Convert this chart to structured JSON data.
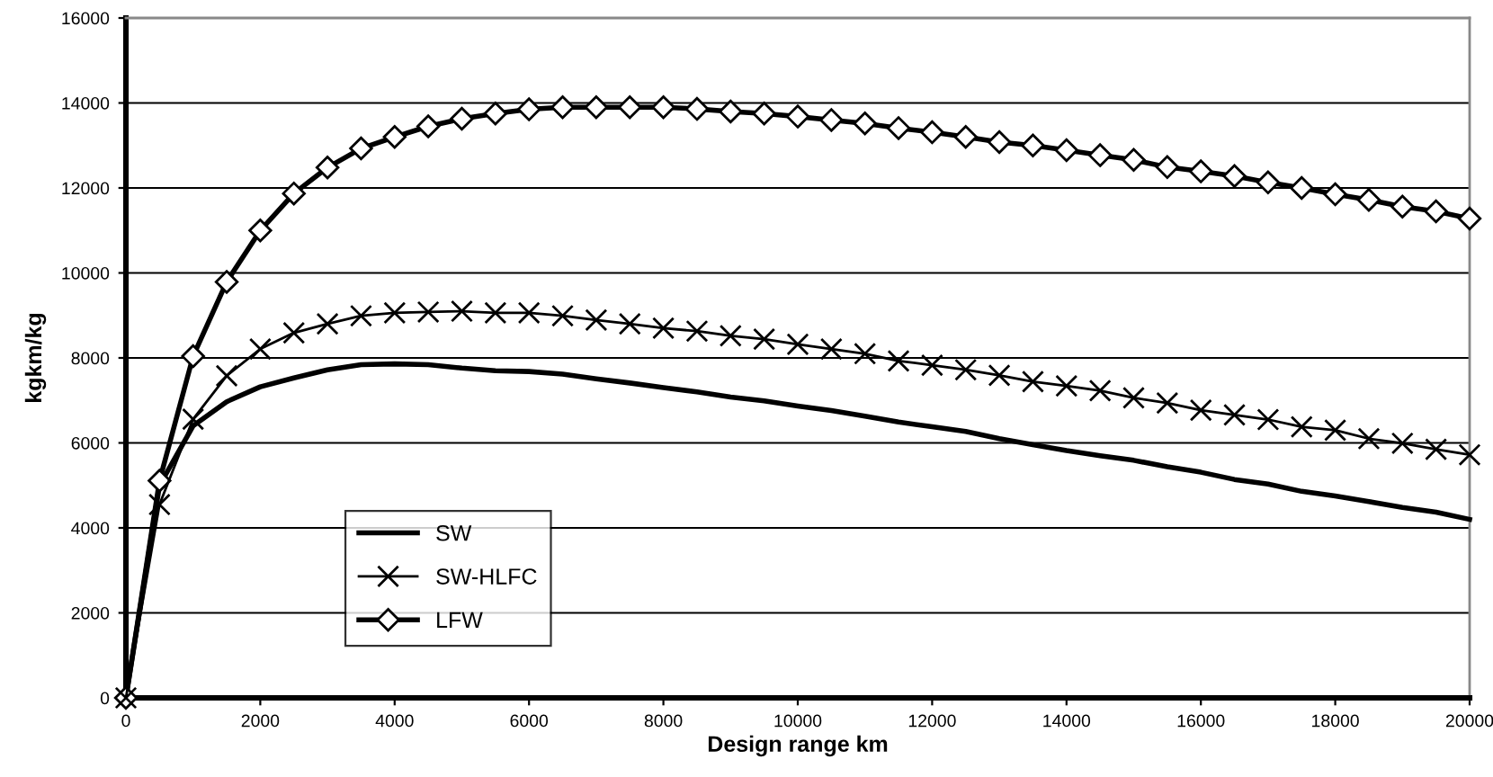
{
  "chart_data": {
    "type": "line",
    "xlabel": "Design range km",
    "ylabel": "kgkm/kg",
    "x": [
      0,
      500,
      1000,
      1500,
      2000,
      2500,
      3000,
      3500,
      4000,
      4500,
      5000,
      5500,
      6000,
      6500,
      7000,
      7500,
      8000,
      8500,
      9000,
      9500,
      10000,
      10500,
      11000,
      11500,
      12000,
      12500,
      13000,
      13500,
      14000,
      14500,
      15000,
      15500,
      16000,
      16500,
      17000,
      17500,
      18000,
      18500,
      19000,
      19500,
      20000
    ],
    "series": [
      {
        "name": "SW",
        "color": "#000000",
        "marker": "none",
        "values": [
          0,
          5000,
          6400,
          6970,
          7320,
          7530,
          7720,
          7840,
          7860,
          7840,
          7760,
          7700,
          7680,
          7620,
          7510,
          7410,
          7300,
          7200,
          7080,
          6990,
          6870,
          6760,
          6630,
          6490,
          6380,
          6270,
          6100,
          5960,
          5820,
          5700,
          5590,
          5440,
          5310,
          5140,
          5030,
          4860,
          4750,
          4620,
          4480,
          4370,
          4200
        ]
      },
      {
        "name": "SW-HLFC",
        "color": "#000000",
        "marker": "cross",
        "values": [
          0,
          4550,
          6560,
          7580,
          8210,
          8590,
          8800,
          8990,
          9060,
          9080,
          9100,
          9060,
          9060,
          8990,
          8890,
          8800,
          8700,
          8630,
          8520,
          8440,
          8320,
          8210,
          8100,
          7930,
          7830,
          7720,
          7590,
          7440,
          7340,
          7230,
          7060,
          6940,
          6770,
          6660,
          6550,
          6380,
          6300,
          6100,
          5990,
          5850,
          5720
        ]
      },
      {
        "name": "LFW",
        "color": "#000000",
        "marker": "diamond",
        "values": [
          0,
          5110,
          8040,
          9790,
          11000,
          11870,
          12480,
          12930,
          13200,
          13450,
          13630,
          13750,
          13850,
          13900,
          13900,
          13900,
          13900,
          13860,
          13800,
          13750,
          13680,
          13600,
          13520,
          13410,
          13310,
          13200,
          13080,
          13000,
          12890,
          12770,
          12660,
          12490,
          12390,
          12280,
          12130,
          12000,
          11850,
          11720,
          11560,
          11450,
          11280
        ]
      }
    ],
    "xlim": [
      0,
      20000
    ],
    "xticks": [
      0,
      2000,
      4000,
      6000,
      8000,
      10000,
      12000,
      14000,
      16000,
      18000,
      20000
    ],
    "ylim": [
      0,
      16000
    ],
    "yticks": [
      0,
      2000,
      4000,
      6000,
      8000,
      10000,
      12000,
      14000,
      16000
    ],
    "grid": "y",
    "legend": "bottom left"
  }
}
